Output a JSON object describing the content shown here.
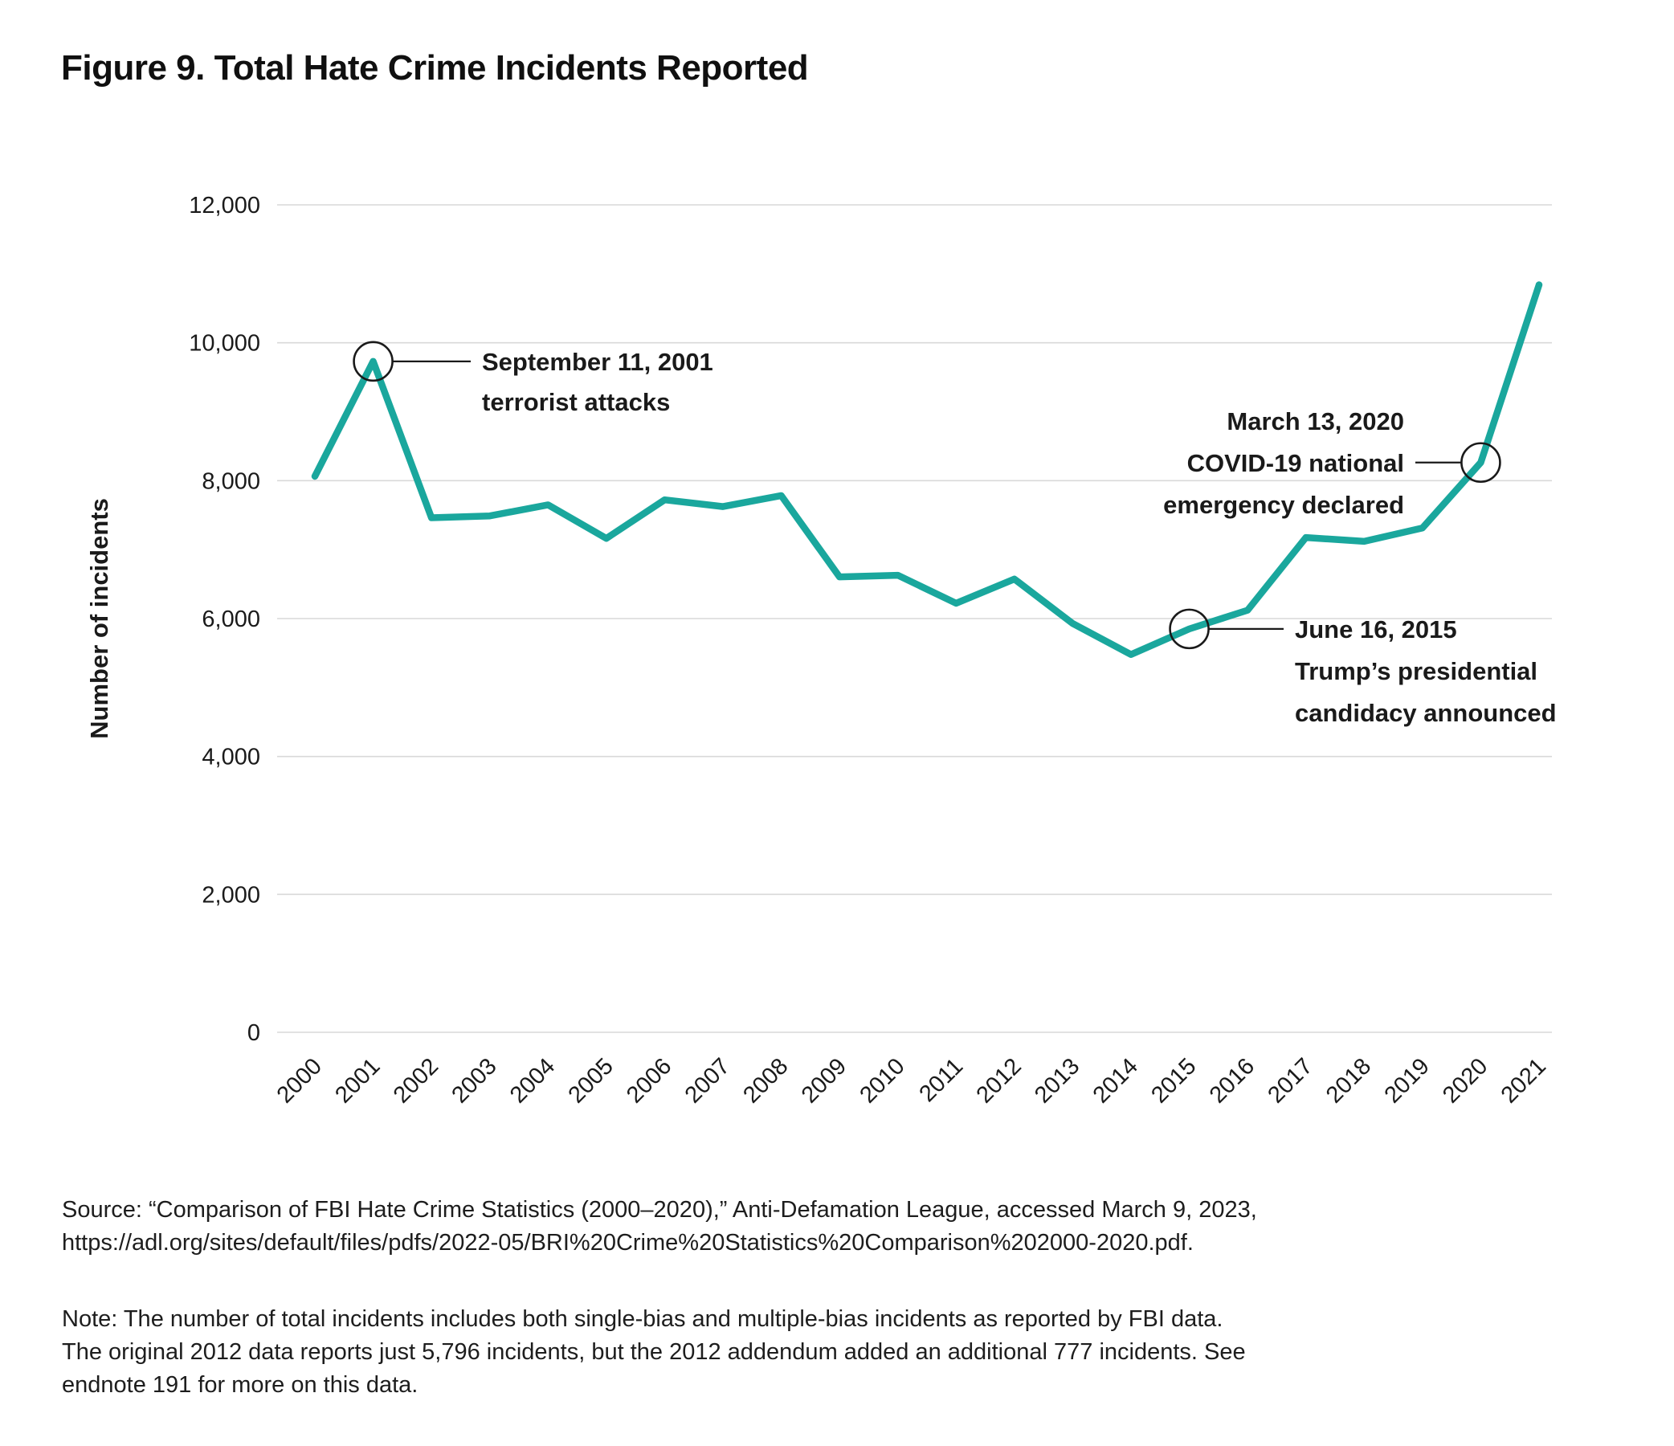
{
  "figure": {
    "title": "Figure 9. Total Hate Crime Incidents Reported",
    "source_lines": [
      "Source: “Comparison of FBI Hate Crime Statistics (2000–2020),” Anti-Defamation League, accessed March 9, 2023,",
      "https://adl.org/sites/default/files/pdfs/2022-05/BRI%20Crime%20Statistics%20Comparison%202000-2020.pdf."
    ],
    "note_lines": [
      "Note: The number of total incidents includes both single-bias and multiple-bias incidents as reported by FBI data.",
      "The original 2012 data reports just 5,796 incidents, but the 2012 addendum added an additional 777 incidents. See",
      "endnote 191 for more on this data."
    ]
  },
  "chart_data": {
    "type": "line",
    "title": "Figure 9. Total Hate Crime Incidents Reported",
    "xlabel": "",
    "ylabel": "Number of incidents",
    "x": [
      2000,
      2001,
      2002,
      2003,
      2004,
      2005,
      2006,
      2007,
      2008,
      2009,
      2010,
      2011,
      2012,
      2013,
      2014,
      2015,
      2016,
      2017,
      2018,
      2019,
      2020,
      2021
    ],
    "series": [
      {
        "name": "Total hate crime incidents reported",
        "values": [
          8063,
          9730,
          7462,
          7489,
          7649,
          7163,
          7722,
          7624,
          7783,
          6604,
          6628,
          6222,
          6573,
          5928,
          5479,
          5850,
          6121,
          7175,
          7120,
          7314,
          8263,
          10840
        ]
      }
    ],
    "ylim": [
      0,
      12000
    ],
    "y_ticks": [
      0,
      2000,
      4000,
      6000,
      8000,
      10000,
      12000
    ],
    "y_tick_labels": [
      "0",
      "2,000",
      "4,000",
      "6,000",
      "8,000",
      "10,000",
      "12,000"
    ],
    "grid": "horizontal",
    "legend": "none",
    "line_color": "#1aa79d",
    "annotations": [
      {
        "year": 2001,
        "value": 9730,
        "side": "right",
        "lines": [
          "September 11, 2001",
          "terrorist attacks"
        ]
      },
      {
        "year": 2015,
        "value": 5850,
        "side": "right",
        "lines": [
          "June 16, 2015",
          "Trump’s presidential",
          "candidacy announced"
        ]
      },
      {
        "year": 2020,
        "value": 8263,
        "side": "left",
        "lines": [
          "March 13, 2020",
          "COVID-19 national",
          "emergency declared"
        ]
      }
    ]
  }
}
